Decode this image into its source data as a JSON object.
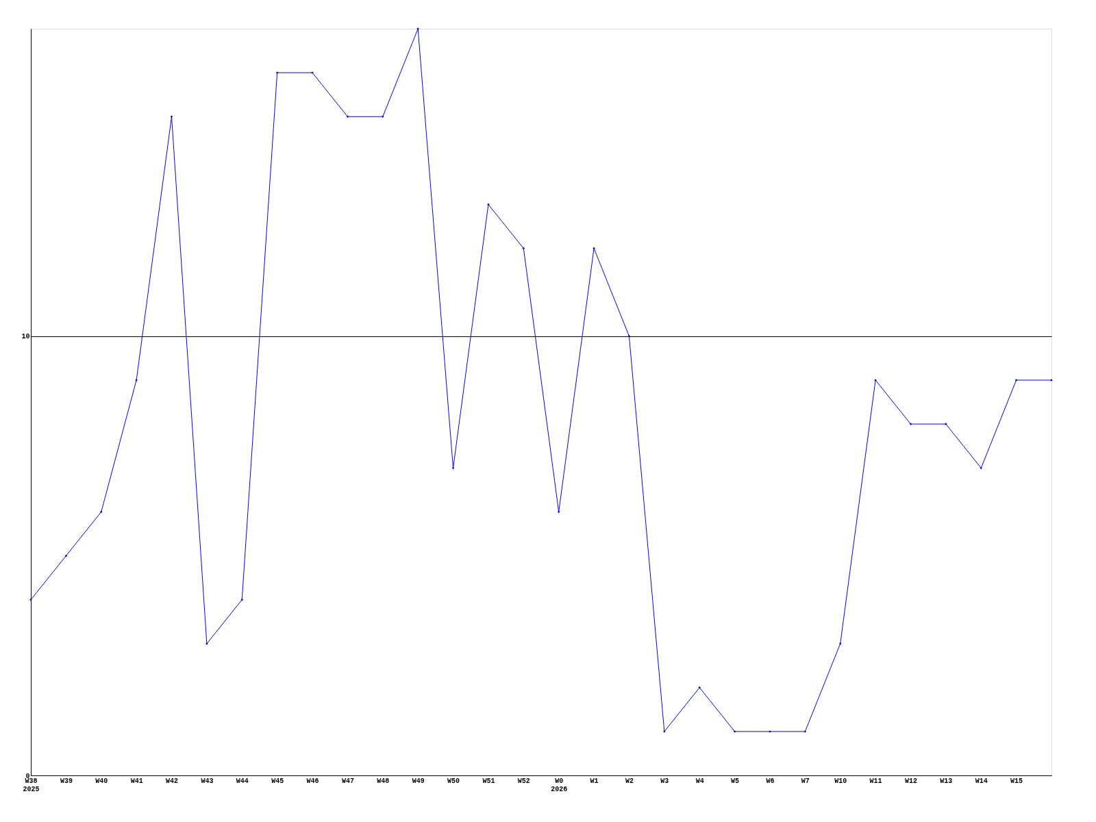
{
  "chart_data": {
    "type": "line",
    "categories": [
      "W38\n2025",
      "W39",
      "W40",
      "W41",
      "W42",
      "W43",
      "W44",
      "W45",
      "W46",
      "W47",
      "W48",
      "W49",
      "W50",
      "W51",
      "W52",
      "W0\n2026",
      "W1",
      "W2",
      "W3",
      "W4",
      "W5",
      "W6",
      "W7",
      "W10",
      "W11",
      "W12",
      "W13",
      "W14",
      "W15",
      null
    ],
    "series": [
      {
        "color": "#0000ff",
        "values": [
          4,
          5,
          6,
          9,
          15,
          3,
          4,
          16,
          16,
          15,
          15,
          17,
          7,
          13,
          12,
          6,
          12,
          10,
          1,
          2,
          1,
          1,
          1,
          3,
          9,
          8,
          8,
          7,
          9,
          9
        ]
      }
    ],
    "ylim": [
      0,
      17
    ],
    "yticks": [
      0,
      10
    ],
    "grid": "y",
    "marker": "diamond",
    "line_style": "solid",
    "legend": false
  }
}
